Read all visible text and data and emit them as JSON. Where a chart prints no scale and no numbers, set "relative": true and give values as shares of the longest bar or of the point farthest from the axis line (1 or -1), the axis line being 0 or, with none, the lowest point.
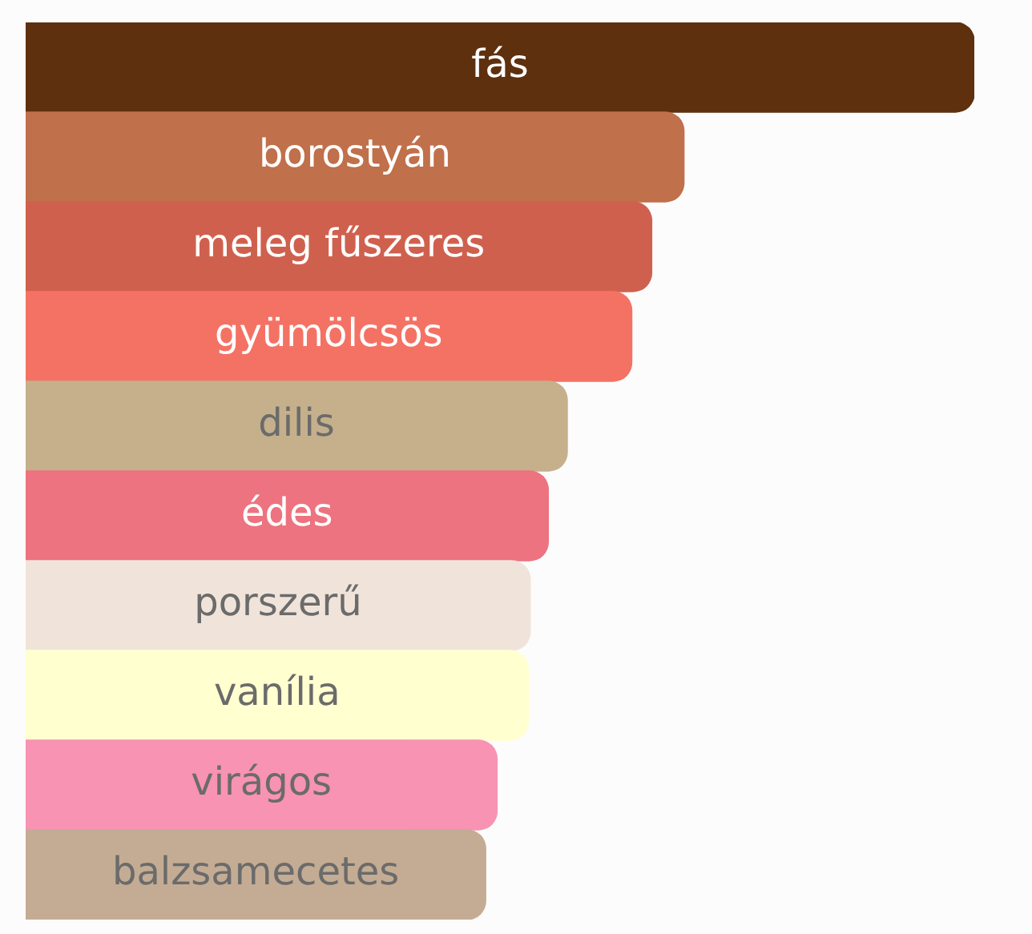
{
  "chart_data": {
    "type": "bar",
    "orientation": "horizontal",
    "relative": true,
    "categories": [
      "fás",
      "borostyán",
      "meleg fűszeres",
      "gyümölcsös",
      "dilis",
      "édes",
      "porszerű",
      "vanília",
      "virágos",
      "balzsamecetes"
    ],
    "values": [
      1,
      0.694,
      0.66,
      0.639,
      0.571,
      0.551,
      0.532,
      0.53,
      0.497,
      0.485
    ],
    "colors": [
      "#5e300e",
      "#c0704a",
      "#d0604e",
      "#f47264",
      "#c5b08b",
      "#ec737f",
      "#f0e4da",
      "#ffffd0",
      "#f893b3",
      "#c4ac94"
    ]
  }
}
